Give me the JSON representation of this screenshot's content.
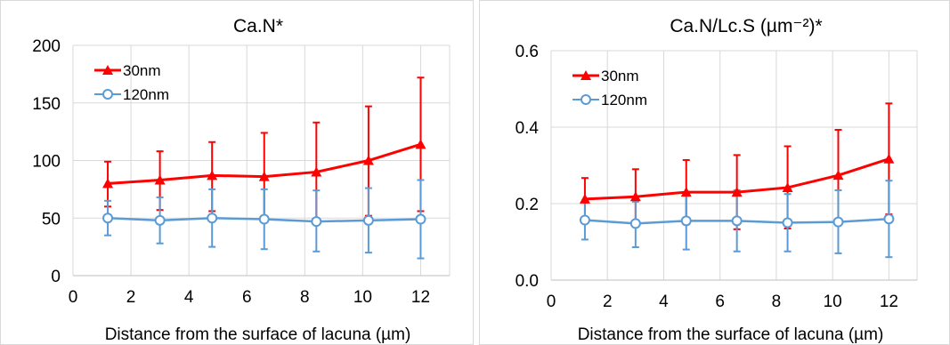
{
  "chart_data": [
    {
      "type": "line",
      "title": "Ca.N*",
      "xlabel": "Distance from the surface of lacuna (µm)",
      "ylabel": "",
      "xlim": [
        0,
        13
      ],
      "ylim": [
        0,
        200
      ],
      "x_ticks": [
        0,
        2,
        4,
        6,
        8,
        10,
        12
      ],
      "y_ticks": [
        0,
        50,
        100,
        150,
        200
      ],
      "x_tick_labels": [
        "0",
        "2",
        "4",
        "6",
        "8",
        "10",
        "12"
      ],
      "y_tick_labels": [
        "0",
        "50",
        "100",
        "150",
        "200"
      ],
      "grid": true,
      "legend_position": "top-left",
      "series": [
        {
          "name": "30nm",
          "color": "#ff0000",
          "marker": "triangle",
          "x": [
            1.2,
            3.0,
            4.8,
            6.6,
            8.4,
            10.2,
            12.0
          ],
          "values": [
            80,
            83,
            87,
            86,
            90,
            100,
            114
          ],
          "err_upper": [
            99,
            108,
            116,
            124,
            133,
            147,
            172
          ],
          "err_lower": [
            60,
            57,
            56,
            48,
            46,
            52,
            56
          ]
        },
        {
          "name": "120nm",
          "color": "#5b9bd5",
          "marker": "circle",
          "x": [
            1.2,
            3.0,
            4.8,
            6.6,
            8.4,
            10.2,
            12.0
          ],
          "values": [
            50,
            48,
            50,
            49,
            47,
            48,
            49
          ],
          "err_upper": [
            65,
            68,
            75,
            75,
            74,
            76,
            83
          ],
          "err_lower": [
            35,
            28,
            25,
            23,
            21,
            20,
            15
          ]
        }
      ]
    },
    {
      "type": "line",
      "title": "Ca.N/Lc.S (µm⁻²)*",
      "xlabel": "Distance from the surface of lacuna (µm)",
      "ylabel": "",
      "xlim": [
        0,
        13
      ],
      "ylim": [
        0,
        0.6
      ],
      "x_ticks": [
        0,
        2,
        4,
        6,
        8,
        10,
        12
      ],
      "y_ticks": [
        0,
        0.2,
        0.4,
        0.6
      ],
      "x_tick_labels": [
        "0",
        "2",
        "4",
        "6",
        "8",
        "10",
        "12"
      ],
      "y_tick_labels": [
        "0.0",
        "0.2",
        "0.4",
        "0.6"
      ],
      "grid": true,
      "legend_position": "top-left",
      "series": [
        {
          "name": "30nm",
          "color": "#ff0000",
          "marker": "triangle",
          "x": [
            1.2,
            3.0,
            4.8,
            6.6,
            8.4,
            10.2,
            12.0
          ],
          "values": [
            0.212,
            0.218,
            0.23,
            0.23,
            0.242,
            0.274,
            0.317
          ],
          "err_upper": [
            0.267,
            0.29,
            0.314,
            0.327,
            0.35,
            0.393,
            0.462
          ],
          "err_lower": [
            0.157,
            0.146,
            0.146,
            0.133,
            0.135,
            0.155,
            0.172
          ]
        },
        {
          "name": "120nm",
          "color": "#5b9bd5",
          "marker": "circle",
          "x": [
            1.2,
            3.0,
            4.8,
            6.6,
            8.4,
            10.2,
            12.0
          ],
          "values": [
            0.157,
            0.148,
            0.155,
            0.155,
            0.15,
            0.152,
            0.16
          ],
          "err_upper": [
            0.208,
            0.205,
            0.225,
            0.235,
            0.225,
            0.235,
            0.26
          ],
          "err_lower": [
            0.106,
            0.086,
            0.08,
            0.075,
            0.075,
            0.07,
            0.06
          ]
        }
      ]
    }
  ]
}
